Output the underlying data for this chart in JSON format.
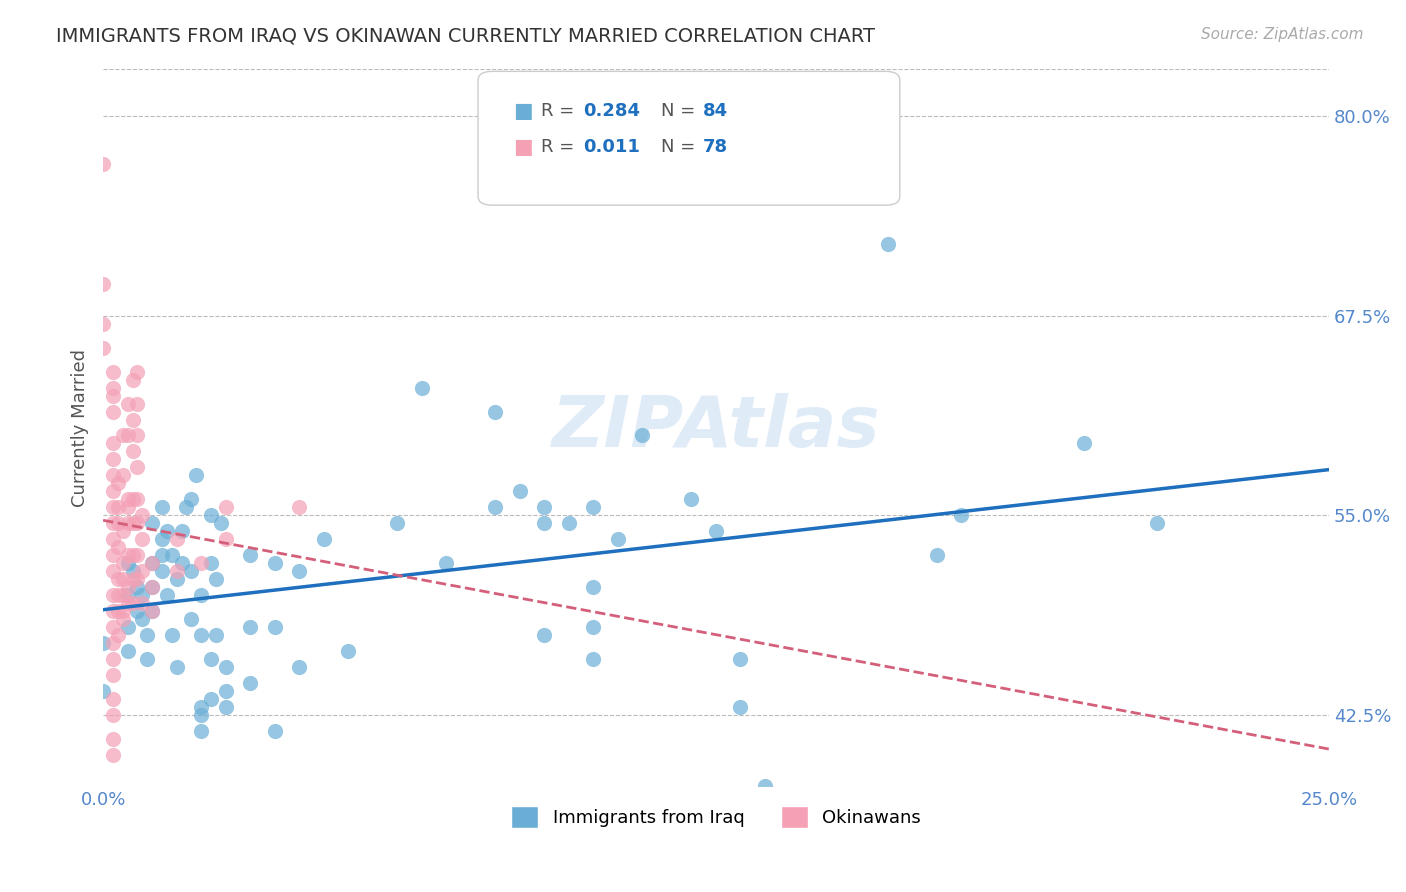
{
  "title": "IMMIGRANTS FROM IRAQ VS OKINAWAN CURRENTLY MARRIED CORRELATION CHART",
  "source": "Source: ZipAtlas.com",
  "xlabel_ticks": [
    "0.0%",
    "25.0%"
  ],
  "ylabel_label": "Currently Married",
  "ylabel_ticks": [
    42.5,
    55.0,
    67.5,
    80.0
  ],
  "ylabel_tick_labels": [
    "42.5%",
    "55.0%",
    "67.5%",
    "80.0%"
  ],
  "xlim": [
    0.0,
    0.25
  ],
  "ylim": [
    0.38,
    0.83
  ],
  "legend_iraq": {
    "R": "0.284",
    "N": "84"
  },
  "legend_okinawa": {
    "R": "0.011",
    "N": "78"
  },
  "blue_color": "#6aaed6",
  "pink_color": "#f4a0b5",
  "trend_blue": "#1f6fbf",
  "trend_pink": "#d45f7a",
  "watermark": "ZIPAtlas",
  "iraq_scatter": [
    [
      0.0,
      0.47
    ],
    [
      0.0,
      0.44
    ],
    [
      0.005,
      0.465
    ],
    [
      0.005,
      0.48
    ],
    [
      0.005,
      0.5
    ],
    [
      0.005,
      0.52
    ],
    [
      0.006,
      0.515
    ],
    [
      0.007,
      0.505
    ],
    [
      0.007,
      0.49
    ],
    [
      0.008,
      0.5
    ],
    [
      0.008,
      0.485
    ],
    [
      0.009,
      0.475
    ],
    [
      0.009,
      0.46
    ],
    [
      0.01,
      0.49
    ],
    [
      0.01,
      0.52
    ],
    [
      0.01,
      0.545
    ],
    [
      0.01,
      0.505
    ],
    [
      0.012,
      0.535
    ],
    [
      0.012,
      0.525
    ],
    [
      0.012,
      0.515
    ],
    [
      0.012,
      0.555
    ],
    [
      0.013,
      0.5
    ],
    [
      0.013,
      0.54
    ],
    [
      0.014,
      0.525
    ],
    [
      0.014,
      0.475
    ],
    [
      0.015,
      0.455
    ],
    [
      0.015,
      0.51
    ],
    [
      0.016,
      0.52
    ],
    [
      0.016,
      0.54
    ],
    [
      0.017,
      0.555
    ],
    [
      0.018,
      0.485
    ],
    [
      0.018,
      0.515
    ],
    [
      0.018,
      0.56
    ],
    [
      0.019,
      0.575
    ],
    [
      0.02,
      0.475
    ],
    [
      0.02,
      0.5
    ],
    [
      0.02,
      0.415
    ],
    [
      0.02,
      0.425
    ],
    [
      0.02,
      0.43
    ],
    [
      0.022,
      0.435
    ],
    [
      0.022,
      0.46
    ],
    [
      0.022,
      0.52
    ],
    [
      0.022,
      0.55
    ],
    [
      0.023,
      0.475
    ],
    [
      0.023,
      0.51
    ],
    [
      0.024,
      0.545
    ],
    [
      0.025,
      0.44
    ],
    [
      0.025,
      0.455
    ],
    [
      0.025,
      0.43
    ],
    [
      0.03,
      0.525
    ],
    [
      0.03,
      0.48
    ],
    [
      0.03,
      0.445
    ],
    [
      0.035,
      0.48
    ],
    [
      0.035,
      0.52
    ],
    [
      0.035,
      0.415
    ],
    [
      0.04,
      0.515
    ],
    [
      0.04,
      0.455
    ],
    [
      0.045,
      0.535
    ],
    [
      0.05,
      0.465
    ],
    [
      0.06,
      0.545
    ],
    [
      0.065,
      0.63
    ],
    [
      0.07,
      0.52
    ],
    [
      0.08,
      0.615
    ],
    [
      0.08,
      0.555
    ],
    [
      0.085,
      0.565
    ],
    [
      0.09,
      0.545
    ],
    [
      0.09,
      0.555
    ],
    [
      0.09,
      0.475
    ],
    [
      0.095,
      0.545
    ],
    [
      0.1,
      0.555
    ],
    [
      0.1,
      0.505
    ],
    [
      0.1,
      0.48
    ],
    [
      0.1,
      0.46
    ],
    [
      0.105,
      0.535
    ],
    [
      0.11,
      0.6
    ],
    [
      0.12,
      0.56
    ],
    [
      0.125,
      0.54
    ],
    [
      0.13,
      0.46
    ],
    [
      0.13,
      0.43
    ],
    [
      0.135,
      0.38
    ],
    [
      0.16,
      0.72
    ],
    [
      0.17,
      0.525
    ],
    [
      0.175,
      0.55
    ],
    [
      0.2,
      0.595
    ],
    [
      0.215,
      0.545
    ]
  ],
  "okinawa_scatter": [
    [
      0.0,
      0.77
    ],
    [
      0.0,
      0.695
    ],
    [
      0.0,
      0.67
    ],
    [
      0.0,
      0.655
    ],
    [
      0.002,
      0.64
    ],
    [
      0.002,
      0.63
    ],
    [
      0.002,
      0.625
    ],
    [
      0.002,
      0.615
    ],
    [
      0.002,
      0.595
    ],
    [
      0.002,
      0.585
    ],
    [
      0.002,
      0.575
    ],
    [
      0.002,
      0.565
    ],
    [
      0.002,
      0.555
    ],
    [
      0.002,
      0.545
    ],
    [
      0.002,
      0.535
    ],
    [
      0.002,
      0.525
    ],
    [
      0.002,
      0.515
    ],
    [
      0.002,
      0.5
    ],
    [
      0.002,
      0.49
    ],
    [
      0.002,
      0.48
    ],
    [
      0.002,
      0.47
    ],
    [
      0.002,
      0.46
    ],
    [
      0.002,
      0.45
    ],
    [
      0.002,
      0.435
    ],
    [
      0.002,
      0.425
    ],
    [
      0.002,
      0.41
    ],
    [
      0.002,
      0.4
    ],
    [
      0.003,
      0.57
    ],
    [
      0.003,
      0.555
    ],
    [
      0.003,
      0.545
    ],
    [
      0.003,
      0.53
    ],
    [
      0.003,
      0.51
    ],
    [
      0.003,
      0.5
    ],
    [
      0.003,
      0.49
    ],
    [
      0.003,
      0.475
    ],
    [
      0.004,
      0.6
    ],
    [
      0.004,
      0.575
    ],
    [
      0.004,
      0.54
    ],
    [
      0.004,
      0.52
    ],
    [
      0.004,
      0.51
    ],
    [
      0.004,
      0.5
    ],
    [
      0.004,
      0.49
    ],
    [
      0.004,
      0.485
    ],
    [
      0.005,
      0.62
    ],
    [
      0.005,
      0.6
    ],
    [
      0.005,
      0.56
    ],
    [
      0.005,
      0.555
    ],
    [
      0.005,
      0.545
    ],
    [
      0.005,
      0.525
    ],
    [
      0.005,
      0.505
    ],
    [
      0.005,
      0.495
    ],
    [
      0.006,
      0.635
    ],
    [
      0.006,
      0.61
    ],
    [
      0.006,
      0.59
    ],
    [
      0.006,
      0.56
    ],
    [
      0.006,
      0.545
    ],
    [
      0.006,
      0.525
    ],
    [
      0.006,
      0.51
    ],
    [
      0.006,
      0.495
    ],
    [
      0.007,
      0.64
    ],
    [
      0.007,
      0.62
    ],
    [
      0.007,
      0.6
    ],
    [
      0.007,
      0.58
    ],
    [
      0.007,
      0.56
    ],
    [
      0.007,
      0.545
    ],
    [
      0.007,
      0.525
    ],
    [
      0.007,
      0.51
    ],
    [
      0.008,
      0.55
    ],
    [
      0.008,
      0.535
    ],
    [
      0.008,
      0.515
    ],
    [
      0.008,
      0.495
    ],
    [
      0.01,
      0.52
    ],
    [
      0.01,
      0.505
    ],
    [
      0.01,
      0.49
    ],
    [
      0.015,
      0.535
    ],
    [
      0.015,
      0.515
    ],
    [
      0.02,
      0.52
    ],
    [
      0.025,
      0.555
    ],
    [
      0.025,
      0.535
    ],
    [
      0.04,
      0.555
    ]
  ]
}
